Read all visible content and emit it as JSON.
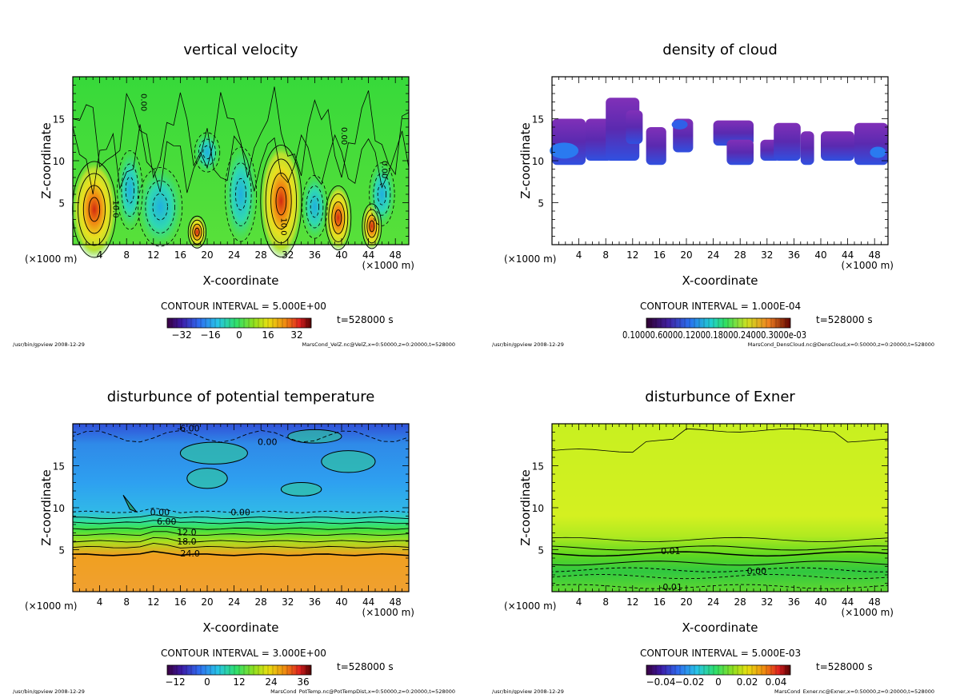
{
  "panels": [
    {
      "title": "vertical velocity",
      "xlabel": "X-coordinate",
      "ylabel": "Z-coordinate",
      "x_unit_left": "(×1000 m)",
      "x_unit_right": "(×1000 m)",
      "x_ticks": [
        "4",
        "8",
        "12",
        "16",
        "20",
        "24",
        "28",
        "32",
        "36",
        "40",
        "44",
        "48"
      ],
      "y_ticks": [
        "5",
        "10",
        "15"
      ],
      "contour_interval": "CONTOUR INTERVAL = 5.000E+00",
      "time": "t=528000 s",
      "colorbar_ticks": [
        "−32",
        "−16",
        "0",
        "16",
        "32"
      ],
      "footer_left": "/usr/bin/gpview  2008-12-29",
      "footer_right": "MarsCond_VelZ.nc@VelZ,x=0:50000,z=0:20000,t=528000",
      "contour_labels": [
        "10.0",
        "10.0",
        "0.00",
        "0.00",
        "0.00"
      ]
    },
    {
      "title": "density of cloud",
      "xlabel": "X-coordinate",
      "ylabel": "Z-coordinate",
      "x_unit_left": "(×1000 m)",
      "x_unit_right": "(×1000 m)",
      "x_ticks": [
        "4",
        "8",
        "12",
        "16",
        "20",
        "24",
        "28",
        "32",
        "36",
        "40",
        "44",
        "48"
      ],
      "y_ticks": [
        "5",
        "10",
        "15"
      ],
      "contour_interval": "CONTOUR INTERVAL = 1.000E-04",
      "time": "t=528000 s",
      "colorbar_ticks": [
        "0.10000.60000.12000.18000.24000.3000e-03"
      ],
      "footer_left": "/usr/bin/gpview  2008-12-29",
      "footer_right": "MarsCond_DensCloud.nc@DensCloud,x=0:50000,z=0:20000,t=528000",
      "contour_labels": []
    },
    {
      "title": "disturbunce of potential temperature",
      "xlabel": "X-coordinate",
      "ylabel": "Z-coordinate",
      "x_unit_left": "(×1000 m)",
      "x_unit_right": "(×1000 m)",
      "x_ticks": [
        "4",
        "8",
        "12",
        "16",
        "20",
        "24",
        "28",
        "32",
        "36",
        "40",
        "44",
        "48"
      ],
      "y_ticks": [
        "5",
        "10",
        "15"
      ],
      "contour_interval": "CONTOUR INTERVAL = 3.000E+00",
      "time": "t=528000 s",
      "colorbar_ticks": [
        "−12",
        "0",
        "12",
        "24",
        "36"
      ],
      "footer_left": "/usr/bin/gpview  2008-12-29",
      "footer_right": "MarsCond_PotTemp.nc@PotTempDist,x=0:50000,z=0:20000,t=528000",
      "contour_labels": [
        "-6.00",
        "0.00",
        "0.00",
        "0.00",
        "6.00",
        "12.0",
        "18.0",
        "24.0"
      ]
    },
    {
      "title": "disturbunce of Exner",
      "xlabel": "X-coordinate",
      "ylabel": "Z-coordinate",
      "x_unit_left": "(×1000 m)",
      "x_unit_right": "(×1000 m)",
      "x_ticks": [
        "4",
        "8",
        "12",
        "16",
        "20",
        "24",
        "28",
        "32",
        "36",
        "40",
        "44",
        "48"
      ],
      "y_ticks": [
        "5",
        "10",
        "15"
      ],
      "contour_interval": "CONTOUR INTERVAL = 5.000E-03",
      "time": "t=528000 s",
      "colorbar_ticks": [
        "−0.04",
        "−0.02",
        "0",
        "0.02",
        "0.04"
      ],
      "footer_left": "/usr/bin/gpview  2008-12-29",
      "footer_right": "MarsCond_Exner.nc@Exner,x=0:50000,z=0:20000,t=528000",
      "contour_labels": [
        "0.01",
        "0.00",
        "-0.01"
      ]
    }
  ],
  "chart_data": [
    {
      "type": "heatmap",
      "title": "vertical velocity",
      "xlabel": "X-coordinate",
      "ylabel": "Z-coordinate",
      "xlim": [
        0,
        50
      ],
      "ylim": [
        0,
        20
      ],
      "x_ticks": [
        4,
        8,
        12,
        16,
        20,
        24,
        28,
        32,
        36,
        40,
        44,
        48
      ],
      "y_ticks": [
        5,
        10,
        15
      ],
      "contour_interval": 5.0,
      "colorbar_range": [
        -40,
        40
      ],
      "colorbar_ticks": [
        -32,
        -16,
        0,
        16,
        32
      ]
    },
    {
      "type": "heatmap",
      "title": "density of cloud",
      "xlabel": "X-coordinate",
      "ylabel": "Z-coordinate",
      "xlim": [
        0,
        50
      ],
      "ylim": [
        0,
        20
      ],
      "x_ticks": [
        4,
        8,
        12,
        16,
        20,
        24,
        28,
        32,
        36,
        40,
        44,
        48
      ],
      "y_ticks": [
        5,
        10,
        15
      ],
      "contour_interval": 0.0001
    },
    {
      "type": "heatmap",
      "title": "disturbunce of potential temperature",
      "xlabel": "X-coordinate",
      "ylabel": "Z-coordinate",
      "xlim": [
        0,
        50
      ],
      "ylim": [
        0,
        20
      ],
      "x_ticks": [
        4,
        8,
        12,
        16,
        20,
        24,
        28,
        32,
        36,
        40,
        44,
        48
      ],
      "y_ticks": [
        5,
        10,
        15
      ],
      "contour_interval": 3.0,
      "colorbar_range": [
        -15,
        39
      ],
      "colorbar_ticks": [
        -12,
        0,
        12,
        24,
        36
      ]
    },
    {
      "type": "heatmap",
      "title": "disturbunce of Exner",
      "xlabel": "X-coordinate",
      "ylabel": "Z-coordinate",
      "xlim": [
        0,
        50
      ],
      "ylim": [
        0,
        20
      ],
      "x_ticks": [
        4,
        8,
        12,
        16,
        20,
        24,
        28,
        32,
        36,
        40,
        44,
        48
      ],
      "y_ticks": [
        5,
        10,
        15
      ],
      "contour_interval": 0.005,
      "colorbar_range": [
        -0.05,
        0.05
      ],
      "colorbar_ticks": [
        -0.04,
        -0.02,
        0,
        0.02,
        0.04
      ]
    }
  ]
}
